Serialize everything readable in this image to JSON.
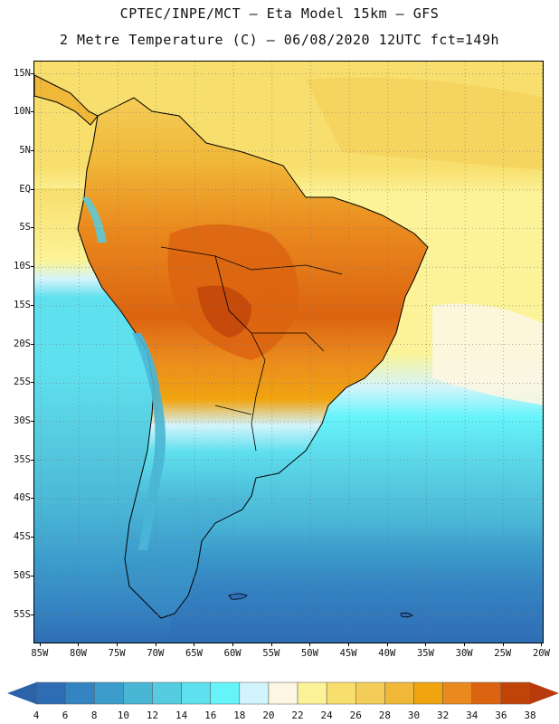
{
  "header": {
    "title_line1": "CPTEC/INPE/MCT –  Eta Model 15km – GFS",
    "title_line2": "2 Metre Temperature (C) – 06/08/2020 12UTC fct=149h"
  },
  "map": {
    "lat_labels": [
      "15N",
      "10N",
      "5N",
      "EQ",
      "5S",
      "10S",
      "15S",
      "20S",
      "25S",
      "30S",
      "35S",
      "40S",
      "45S",
      "50S",
      "55S"
    ],
    "lon_labels": [
      "85W",
      "80W",
      "75W",
      "70W",
      "65W",
      "60W",
      "55W",
      "50W",
      "45W",
      "40W",
      "35W",
      "30W",
      "25W",
      "20W"
    ],
    "lat_values": [
      15,
      10,
      5,
      0,
      -5,
      -10,
      -15,
      -20,
      -25,
      -30,
      -35,
      -40,
      -45,
      -50,
      -55
    ],
    "lon_values": [
      -85,
      -80,
      -75,
      -70,
      -65,
      -60,
      -55,
      -50,
      -45,
      -40,
      -35,
      -30,
      -25,
      -20
    ],
    "bounds": {
      "lon_min": -85.8,
      "lon_max": -19.7,
      "lat_max": 16.6,
      "lat_min": -58.8
    }
  },
  "colorbar": {
    "labels": [
      "4",
      "6",
      "8",
      "10",
      "12",
      "14",
      "16",
      "18",
      "20",
      "22",
      "24",
      "26",
      "28",
      "30",
      "32",
      "34",
      "36",
      "38"
    ],
    "colors": [
      "#2e6cb4",
      "#3584c2",
      "#3c9ccc",
      "#4ab6d6",
      "#56cce0",
      "#5fe0ee",
      "#66f4fb",
      "#d2f4fc",
      "#fcf6e2",
      "#fcf398",
      "#f8de6c",
      "#f4cc58",
      "#f0b838",
      "#f0a410",
      "#ea8a1e",
      "#dc6410",
      "#c04408"
    ],
    "low_color": "#2b62a8",
    "high_color": "#b83a0c"
  }
}
